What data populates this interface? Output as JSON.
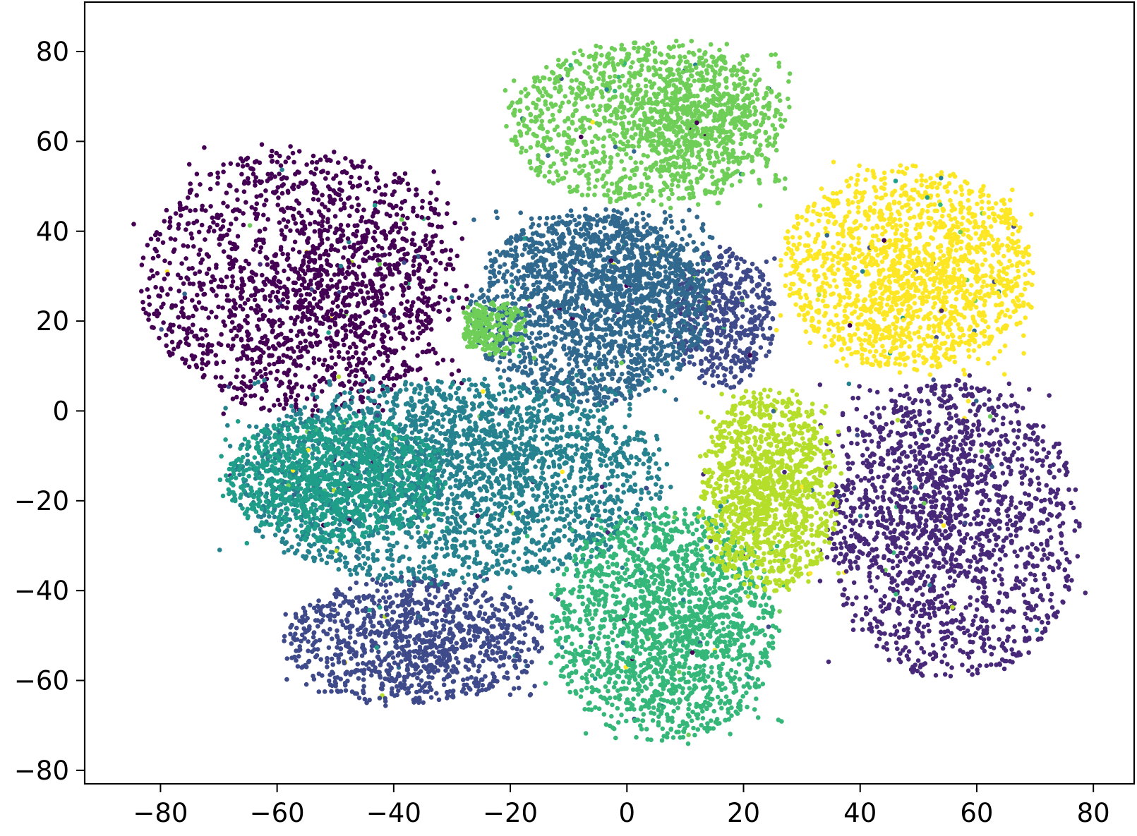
{
  "chart_data": {
    "type": "scatter",
    "title": "",
    "xlabel": "",
    "ylabel": "",
    "xlim": [
      -93,
      87
    ],
    "ylim": [
      -83,
      91
    ],
    "grid": false,
    "legend": "none",
    "x_ticks": [
      -80,
      -60,
      -40,
      -20,
      0,
      20,
      40,
      60,
      80
    ],
    "y_ticks": [
      -80,
      -60,
      -40,
      -20,
      0,
      20,
      40,
      60,
      80
    ],
    "x_tick_labels": [
      "−80",
      "−60",
      "−40",
      "−20",
      "0",
      "20",
      "40",
      "60",
      "80"
    ],
    "y_tick_labels": [
      "−80",
      "−60",
      "−40",
      "−20",
      "0",
      "20",
      "40",
      "60",
      "80"
    ],
    "colormap": "viridis",
    "series": [
      {
        "color": "#440154",
        "approx_points": 1800,
        "center": [
          -50,
          28
        ],
        "x_range": [
          -85,
          -27
        ],
        "y_range": [
          -2,
          60
        ]
      },
      {
        "color": "#482878",
        "approx_points": 1800,
        "center": [
          52,
          -20
        ],
        "x_range": [
          33,
          79
        ],
        "y_range": [
          -62,
          8
        ]
      },
      {
        "color": "#3e4a89",
        "approx_points": 1100,
        "center": [
          -35,
          -52
        ],
        "x_range": [
          -60,
          -13
        ],
        "y_range": [
          -66,
          -36
        ]
      },
      {
        "color": "#3e4a89",
        "approx_points": 500,
        "center": [
          17,
          22
        ],
        "x_range": [
          7,
          26
        ],
        "y_range": [
          4,
          37
        ]
      },
      {
        "color": "#31688e",
        "approx_points": 2200,
        "center": [
          0,
          30
        ],
        "x_range": [
          -28,
          15
        ],
        "y_range": [
          0,
          45
        ]
      },
      {
        "color": "#26828e",
        "approx_points": 2600,
        "center": [
          -28,
          -10
        ],
        "x_range": [
          -70,
          8
        ],
        "y_range": [
          -40,
          8
        ]
      },
      {
        "color": "#1f9e89",
        "approx_points": 1200,
        "center": [
          -50,
          -15
        ],
        "x_range": [
          -70,
          -30
        ],
        "y_range": [
          -30,
          0
        ]
      },
      {
        "color": "#35b779",
        "approx_points": 1800,
        "center": [
          8,
          -48
        ],
        "x_range": [
          -14,
          27
        ],
        "y_range": [
          -75,
          -20
        ]
      },
      {
        "color": "#6ece58",
        "approx_points": 1600,
        "center": [
          10,
          65
        ],
        "x_range": [
          -22,
          28
        ],
        "y_range": [
          45,
          83
        ]
      },
      {
        "color": "#6ece58",
        "approx_points": 250,
        "center": [
          -26,
          18
        ],
        "x_range": [
          -28,
          -17
        ],
        "y_range": [
          12,
          25
        ]
      },
      {
        "color": "#b5de2b",
        "approx_points": 1300,
        "center": [
          23,
          -17
        ],
        "x_range": [
          12,
          37
        ],
        "y_range": [
          -42,
          6
        ]
      },
      {
        "color": "#fde725",
        "approx_points": 1700,
        "center": [
          50,
          28
        ],
        "x_range": [
          25,
          71
        ],
        "y_range": [
          8,
          56
        ]
      }
    ]
  }
}
